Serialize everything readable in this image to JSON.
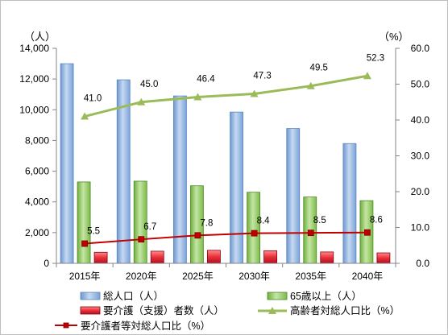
{
  "chart_data": {
    "type": "bar",
    "categories": [
      "2015年",
      "2020年",
      "2025年",
      "2030年",
      "2035年",
      "2040年"
    ],
    "left_unit": "（人）",
    "right_unit": "（%）",
    "left_axis": {
      "min": 0,
      "max": 14000,
      "step": 2000,
      "tick_labels": [
        "0",
        "2,000",
        "4,000",
        "6,000",
        "8,000",
        "10,000",
        "12,000",
        "14,000"
      ]
    },
    "right_axis": {
      "min": 0,
      "max": 60,
      "step": 10,
      "tick_labels": [
        "0.0",
        "10.0",
        "20.0",
        "30.0",
        "40.0",
        "50.0",
        "60.0"
      ]
    },
    "series": [
      {
        "name": "総人口（人）",
        "kind": "bar",
        "axis": "left",
        "color": "#8db3e2",
        "values": [
          13000,
          11950,
          10900,
          9850,
          8780,
          7800
        ]
      },
      {
        "name": "65歳以上（人）",
        "kind": "bar",
        "axis": "left",
        "color": "#92cf63",
        "values": [
          5300,
          5350,
          5050,
          4630,
          4320,
          4080
        ]
      },
      {
        "name": "要介護（支援）者数（人）",
        "kind": "bar",
        "axis": "left",
        "color": "#e8303a",
        "values": [
          720,
          790,
          850,
          820,
          740,
          680
        ]
      },
      {
        "name": "高齢者対総人口比（%）",
        "kind": "line",
        "axis": "right",
        "color": "#9bbb59",
        "marker": "triangle",
        "values": [
          41.0,
          45.0,
          46.4,
          47.3,
          49.5,
          52.3
        ],
        "labels": [
          "41.0",
          "45.0",
          "46.4",
          "47.3",
          "49.5",
          "52.3"
        ]
      },
      {
        "name": "要介護者等対総人口比（%）",
        "kind": "line",
        "axis": "right",
        "color": "#c00000",
        "marker": "square",
        "values": [
          5.5,
          6.7,
          7.8,
          8.4,
          8.5,
          8.6
        ],
        "labels": [
          "5.5",
          "6.7",
          "7.8",
          "8.4",
          "8.5",
          "8.6"
        ]
      }
    ],
    "legend_position": "bottom",
    "grid": false
  }
}
